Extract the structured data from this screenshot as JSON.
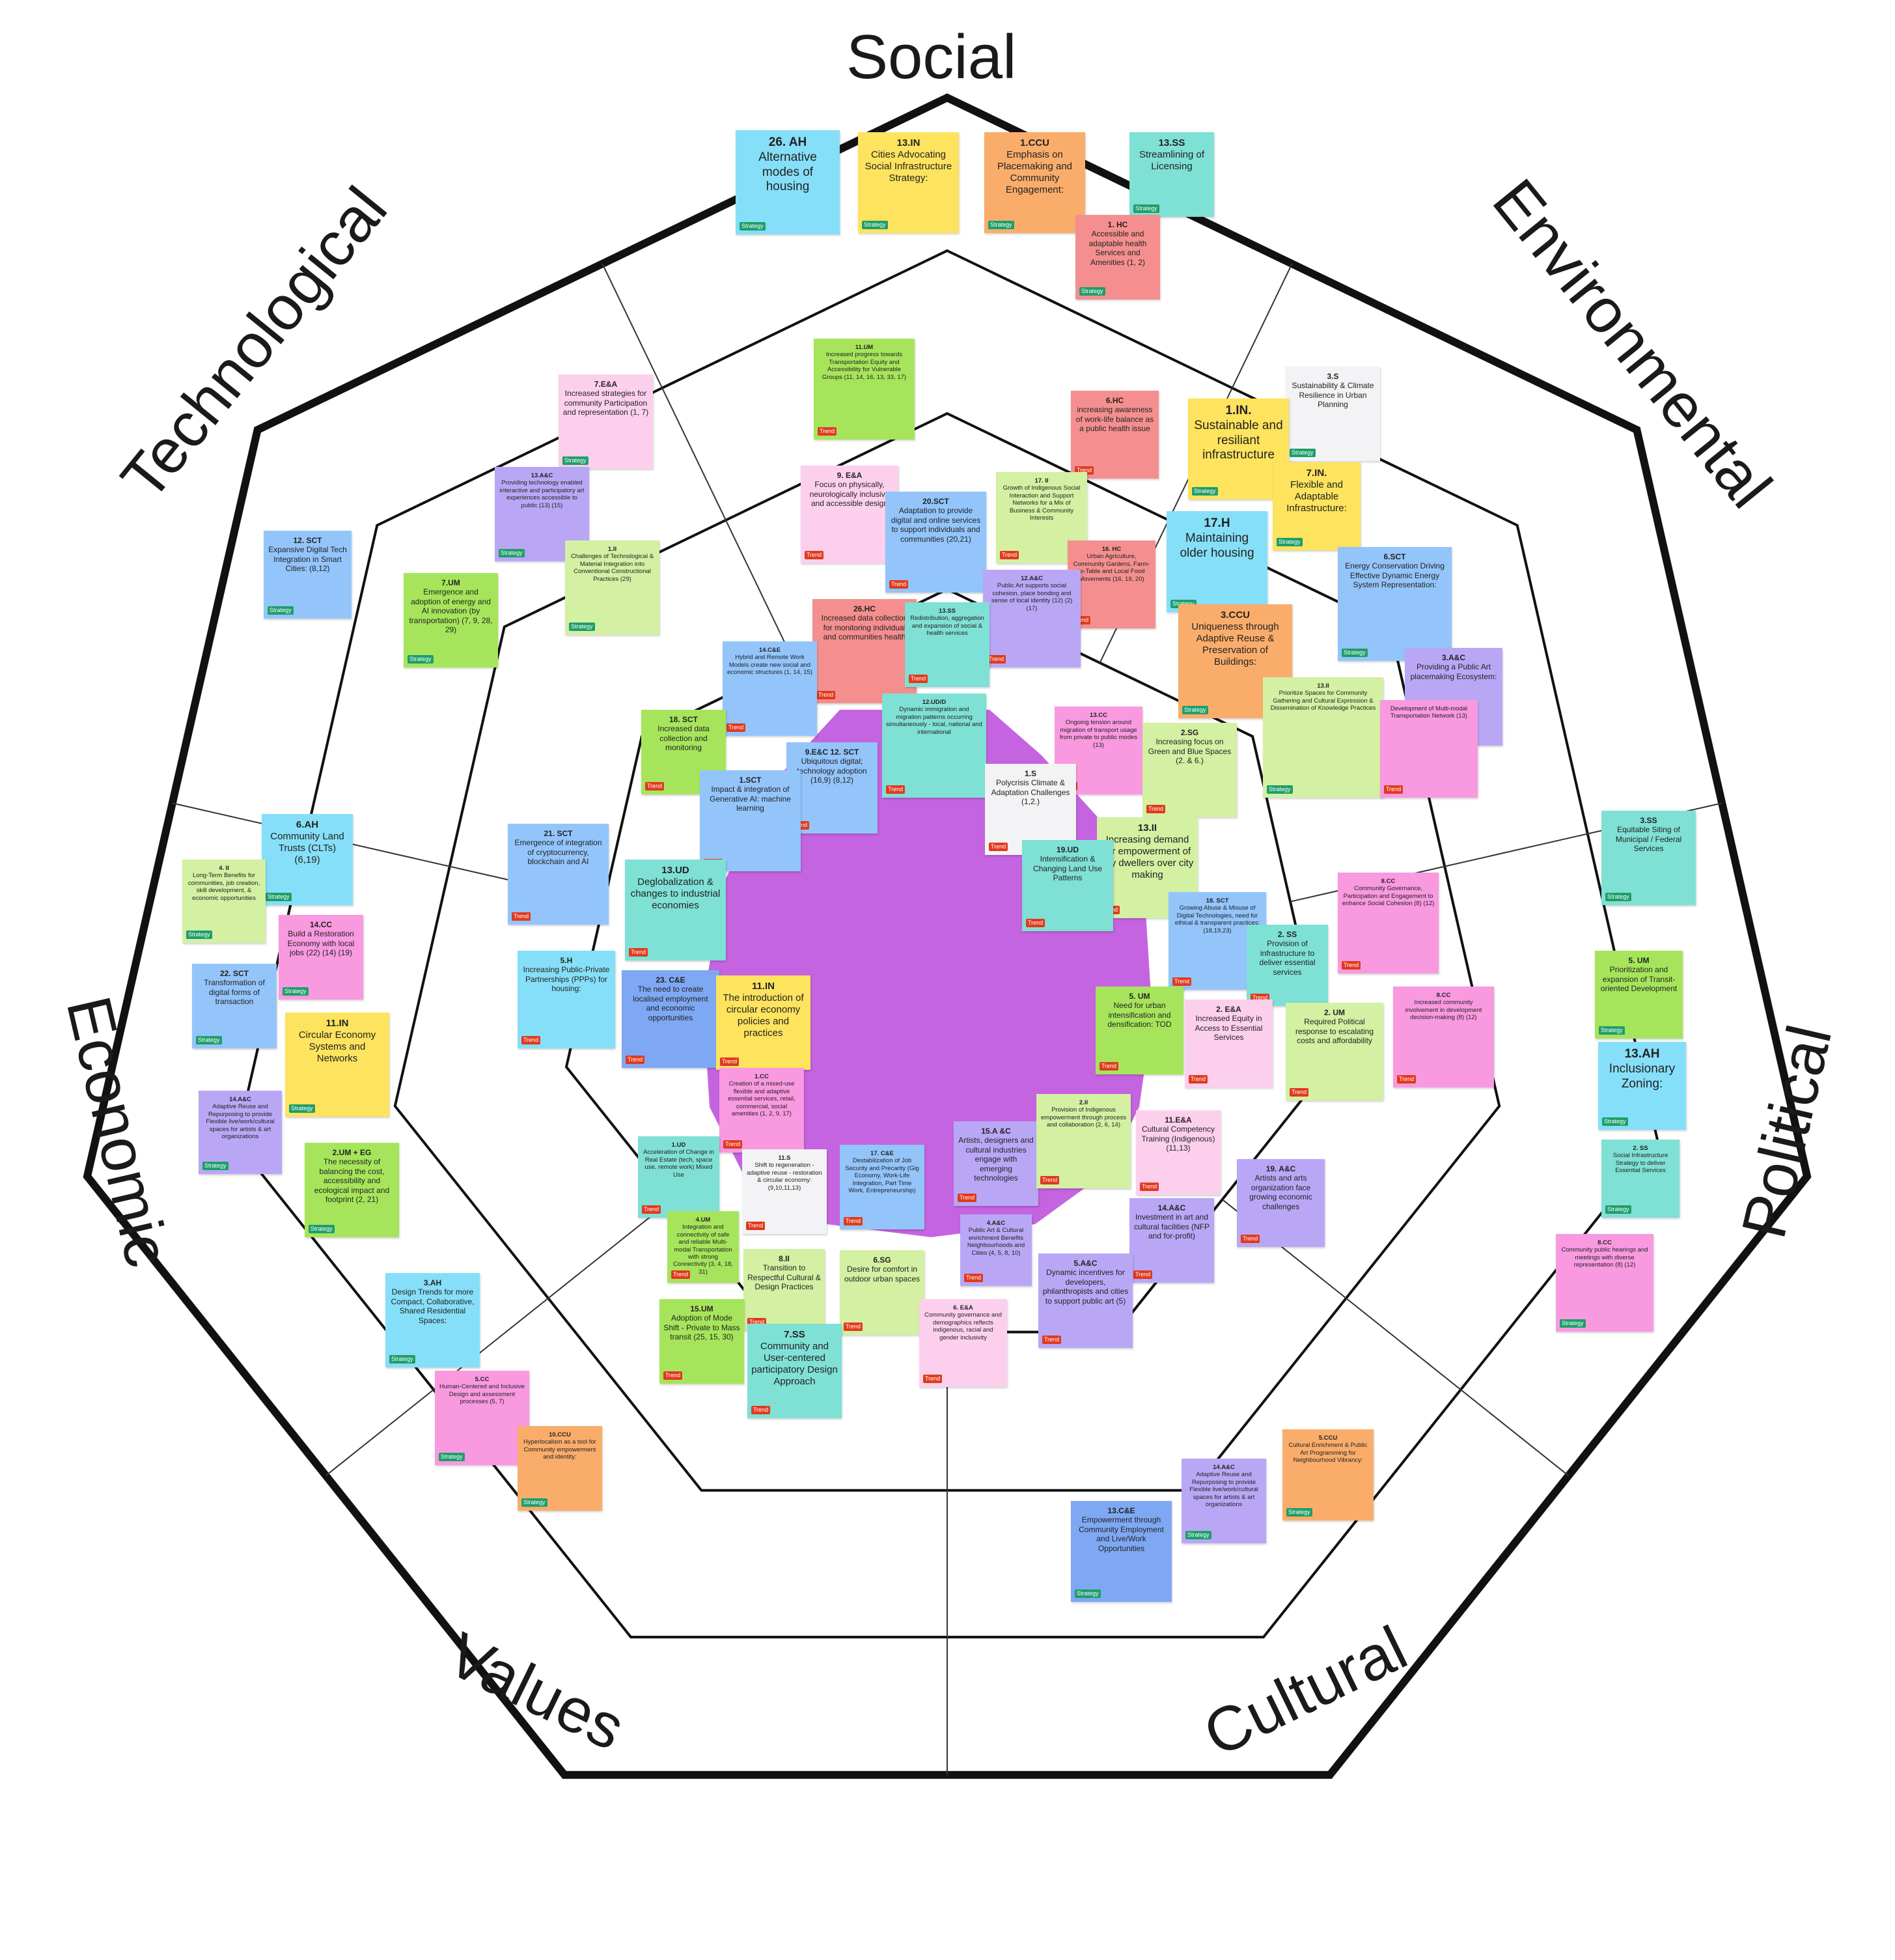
{
  "categories": {
    "social": "Social",
    "environmental": "Environmental",
    "political": "Political",
    "cultural": "Cultural",
    "values": "Values",
    "economic": "Economic",
    "technological": "Technological"
  },
  "tags": {
    "strategy": "Strategy",
    "trend": "Trend"
  },
  "center_blob_color": "#c564e0",
  "colors": {
    "blue": "#93c5fb",
    "cyan": "#86dff8",
    "teal": "#7fe0d5",
    "yellow": "#fde35e",
    "orange": "#faad6b",
    "red": "#f58f8f",
    "pink": "#f999e0",
    "light_pink": "#fcd0ec",
    "purple": "#b9a7f6",
    "green": "#a6e55b",
    "light_green": "#d3f0a3",
    "white": "#f3f3f5",
    "dark_blue": "#7ea8f3",
    "strategy_tag": "#1e9e6a",
    "trend_tag": "#e03a1e"
  },
  "notes": [
    {
      "code": "26. AH",
      "text": "Alternative modes of housing",
      "tag": "strategy"
    },
    {
      "code": "13.IN",
      "text": "Cities Advocating Social Infrastructure Strategy:",
      "tag": "strategy"
    },
    {
      "code": "1.CCU",
      "text": "Emphasis on Placemaking and Community Engagement:",
      "tag": "strategy"
    },
    {
      "code": "13.SS",
      "text": "Streamlining of Licensing",
      "tag": "strategy"
    },
    {
      "code": "1. HC",
      "text": "Accessible and adaptable health Services and Amenities (1, 2)",
      "tag": "strategy"
    },
    {
      "code": "11.UM",
      "text": "Increased progress towards Transportation Equity and Accessibility for Vulnerable Groups (11, 14, 16, 13, 33, 17)",
      "tag": "trend"
    },
    {
      "code": "7.E&A",
      "text": "Increased strategies for community Participation and representation (1, 7)",
      "tag": "strategy"
    },
    {
      "code": "6.HC",
      "text": "increasing awareness of work-life balance as a public health issue",
      "tag": "trend"
    },
    {
      "code": "3.S",
      "text": "Sustainability & Climate Resilience in Urban Planning",
      "tag": "strategy"
    },
    {
      "code": "1.IN.",
      "text": "Sustainable and resiliant infrastructure",
      "tag": "strategy"
    },
    {
      "code": "7.IN.",
      "text": "Flexible and Adaptable Infrastructure:",
      "tag": "strategy"
    },
    {
      "code": "13.A&C",
      "text": "Providing technology enabled interactive and participatory art experiences accessible to public (13) (15)",
      "tag": "strategy"
    },
    {
      "code": "9. E&A",
      "text": "Focus on physically, neurologically inclusive and accessible design",
      "tag": "trend"
    },
    {
      "code": "17. II",
      "text": "Growth of Indigenous Social Interaction and Support Networks for a Mix of Business & Community Interests",
      "tag": "trend"
    },
    {
      "code": "12. SCT",
      "text": "Expansive Digital Tech Integration in Smart Cities: (8,12)",
      "tag": "strategy"
    },
    {
      "code": "1.II",
      "text": "Challenges of Technological & Material Integration into Conventional Constructional Practices (29)",
      "tag": "strategy"
    },
    {
      "code": "20.SCT",
      "text": "Adaptation to provide digital and online services to support individuals and communities (20,21)",
      "tag": "trend"
    },
    {
      "code": "16. HC",
      "text": "Urban Agriculture, Community Gardens, Farm-to-Table and Local Food Movements (16, 19, 20)",
      "tag": "trend"
    },
    {
      "code": "17.H",
      "text": "Maintaining older housing",
      "tag": "strategy"
    },
    {
      "code": "6.SCT",
      "text": "Energy Conservation Driving Effective Dynamic Energy System Representation:",
      "tag": "strategy"
    },
    {
      "code": "7.UM",
      "text": "Emergence and adoption of energy and AI innovation (by transportation) (7, 9, 28, 29)",
      "tag": "strategy"
    },
    {
      "code": "12.A&C",
      "text": "Public Art supports social cohesion, place bonding and sense of local identity (12) (2) (17)",
      "tag": "trend"
    },
    {
      "code": "26.HC",
      "text": "Increased data collection for monitoring individual and communities health",
      "tag": "trend"
    },
    {
      "code": "13.SS",
      "text": "Redistribution, aggregation and expansion of social & health services",
      "tag": "trend"
    },
    {
      "code": "3.CCU",
      "text": "Uniqueness through Adaptive Reuse & Preservation of Buildings:",
      "tag": "strategy"
    },
    {
      "code": "3.A&C",
      "text": "Providing a Public Art placemaking Ecosystem:",
      "tag": "strategy"
    },
    {
      "code": "14.C&E",
      "text": "Hybrid and Remote Work Models create new social and economic structures (1, 14, 15)",
      "tag": "trend"
    },
    {
      "code": "12.UD/D",
      "text": "Dynamic immigration and migration patterns occurring simultaneously - local, national and international",
      "tag": "trend"
    },
    {
      "code": "13.II",
      "text": "Prioritize Spaces for Community Gathering and Cultural Expression & Dissemination of Knowledge Practices",
      "tag": "strategy"
    },
    {
      "code": "",
      "text": "Development of Multi-modal Transportation Network (13)",
      "tag": "trend"
    },
    {
      "code": "18. SCT",
      "text": "Increased data collection and monitoring",
      "tag": "trend"
    },
    {
      "code": "13.CC",
      "text": "Ongoing tension around migration of transport usage from private to public modes (13)",
      "tag": "trend"
    },
    {
      "code": "2.SG",
      "text": "Increasing focus on Green and Blue Spaces (2. & 6.)",
      "tag": "trend"
    },
    {
      "code": "9.E&C 12. SCT",
      "text": "Ubiquitous digital; technology adoption (16,9) (8,12)",
      "tag": "trend"
    },
    {
      "code": "1.SCT",
      "text": "Impact & integration of Generative AI: machine learning",
      "tag": "trend"
    },
    {
      "code": "1.S",
      "text": "Polycrisis Climate & Adaptation Challenges (1,2.)",
      "tag": "trend"
    },
    {
      "code": "13.II",
      "text": "Increasing demand for empowerment of city dwellers over city making",
      "tag": "trend"
    },
    {
      "code": "6.AH",
      "text": "Community Land Trusts (CLTs) (6,19)",
      "tag": "strategy"
    },
    {
      "code": "4. II",
      "text": "Long-Term Benefits for communities, job creation, skill development, & economic opportunities",
      "tag": "strategy"
    },
    {
      "code": "21. SCT",
      "text": "Emergence of integration of cryptocurrency, blockchain and AI",
      "tag": "trend"
    },
    {
      "code": "13.UD",
      "text": "Deglobalization & changes to industrial economies",
      "tag": "trend"
    },
    {
      "code": "19.UD",
      "text": "Intensification & Changing Land Use Patterns",
      "tag": "trend"
    },
    {
      "code": "3.SS",
      "text": "Equitable Siting of Municipal / Federal Services",
      "tag": "strategy"
    },
    {
      "code": "18. SCT",
      "text": "Growing Abuse & Misuse of Digital Technologies, need for ethical & transparent practices: (18,19,23)",
      "tag": "trend"
    },
    {
      "code": "8.CC",
      "text": "Community Governance, Participation and Engagement to enhance Social Cohesion (8) (12)",
      "tag": "trend"
    },
    {
      "code": "14.CC",
      "text": "Build a Restoration Economy with local jobs (22) (14) (19)",
      "tag": "strategy"
    },
    {
      "code": "2. SS",
      "text": "Provision of infrastructure to deliver essential services",
      "tag": "trend"
    },
    {
      "code": "5.H",
      "text": "Increasing Public-Private Partnerships (PPPs) for housing:",
      "tag": "trend"
    },
    {
      "code": "23. C&E",
      "text": "The need to create localised employment and economic opportunities",
      "tag": "trend"
    },
    {
      "code": "11.IN",
      "text": "The introduction of circular economy policies and practices",
      "tag": "trend"
    },
    {
      "code": "22. SCT",
      "text": "Transformation of digital forms of transaction",
      "tag": "strategy"
    },
    {
      "code": "5. UM",
      "text": "Prioritization and expansion of Transit-oriented Development",
      "tag": "strategy"
    },
    {
      "code": "5. UM",
      "text": "Need for urban intensification and densification: TOD",
      "tag": "trend"
    },
    {
      "code": "2. E&A",
      "text": "Increased Equity in Access to Essential Services",
      "tag": "trend"
    },
    {
      "code": "8.CC",
      "text": "Increased community involvement in development decision-making (8) (12)",
      "tag": "trend"
    },
    {
      "code": "11.IN",
      "text": "Circular Economy Systems and Networks",
      "tag": "strategy"
    },
    {
      "code": "2. UM",
      "text": "Required Political response to escalating costs and affordability",
      "tag": "trend"
    },
    {
      "code": "13.AH",
      "text": "Inclusionary Zoning:",
      "tag": "strategy"
    },
    {
      "code": "1.CC",
      "text": "Creation of a mixed-use flexible and adaptive essential services, retail, commercial, social amenities (1, 2, 9, 17)",
      "tag": "trend"
    },
    {
      "code": "14.A&C",
      "text": "Adaptive Reuse and Repurposing to provide Flexible live/work/cultural spaces for artists & art organizations",
      "tag": "strategy"
    },
    {
      "code": "15.A &C",
      "text": "Artists, designers and cultural industries engage with emerging technologies",
      "tag": "trend"
    },
    {
      "code": "2.II",
      "text": "Provision of Indigenous empowerment through process and collaboration (2, 6, 14)",
      "tag": "trend"
    },
    {
      "code": "11.E&A",
      "text": "Cultural Competency Training (Indigenous) (11,13)",
      "tag": "trend"
    },
    {
      "code": "2.UM + EG",
      "text": "The necessity of balancing the cost, accessibility and ecological impact and footprint (2, 21)",
      "tag": "strategy"
    },
    {
      "code": "1.UD",
      "text": "Acceleration of Change in Real Estate (tech, space use, remote work) Mixed Use",
      "tag": "trend"
    },
    {
      "code": "11.S",
      "text": "Shift to regeneration - adaptive reuse - restoration & circular economy: (9,10,11,13)",
      "tag": "trend"
    },
    {
      "code": "17. C&E",
      "text": "Destabilization of Job Security and Precarity (Gig Economy, Work-Life Integration, Part Time Work, Entrepreneurship)",
      "tag": "trend"
    },
    {
      "code": "2. SS",
      "text": "Social Infrastructure Strategy to deliver Essential Services",
      "tag": "strategy"
    },
    {
      "code": "19. A&C",
      "text": "Artists and arts organization face growing economic challenges",
      "tag": "trend"
    },
    {
      "code": "4.UM",
      "text": "Integration and connectivity of safe and reliable Multi-modal Transportation with strong Connectivity (3, 4, 18, 31)",
      "tag": "trend"
    },
    {
      "code": "4.A&C",
      "text": "Public Art & Cultural enrichment Benefits Neighbourhoods and Cities (4, 5, 8, 10)",
      "tag": "trend"
    },
    {
      "code": "14.A&C",
      "text": "Investment in art and cultural facilities (NFP and for-profit)",
      "tag": "trend"
    },
    {
      "code": "8.CC",
      "text": "Community public hearings and meetings with diverse representation (8) (12)",
      "tag": "strategy"
    },
    {
      "code": "8.II",
      "text": "Transition to Respectful Cultural & Design Practices",
      "tag": "trend"
    },
    {
      "code": "6.SG",
      "text": "Desire for comfort in outdoor urban spaces",
      "tag": "trend"
    },
    {
      "code": "3.AH",
      "text": "Design Trends for more Compact, Collaborative, Shared Residential Spaces:",
      "tag": "strategy"
    },
    {
      "code": "5.A&C",
      "text": "Dynamic incentives for developers, philanthropists and cities to support public art (5)",
      "tag": "trend"
    },
    {
      "code": "15.UM",
      "text": "Adoption of Mode Shift - Private to Mass transit (25, 15, 30)",
      "tag": "trend"
    },
    {
      "code": "6. E&A",
      "text": "Community governance and demographics reflects indigenous, racial and gender inclusivity",
      "tag": "trend"
    },
    {
      "code": "7.SS",
      "text": "Community and User-centered participatory Design Approach",
      "tag": "trend"
    },
    {
      "code": "5.CC",
      "text": "Human-Centered and Inclusive Design and assessment processes (5, 7)",
      "tag": "strategy"
    },
    {
      "code": "10.CCU",
      "text": "Hyperlocalism as a tool for Community empowerment and identity:",
      "tag": "strategy"
    },
    {
      "code": "5.CCU",
      "text": "Cultural Enrichment & Public Art Programming for Neighbourhood Vibrancy:",
      "tag": "strategy"
    },
    {
      "code": "14.A&C",
      "text": "Adaptive Reuse and Repurposing to provide Flexible live/work/cultural spaces for artists & art organizations",
      "tag": "strategy"
    },
    {
      "code": "13.C&E",
      "text": "Empowerment through Community Employment and Live/Work Opportunities",
      "tag": "strategy"
    }
  ]
}
